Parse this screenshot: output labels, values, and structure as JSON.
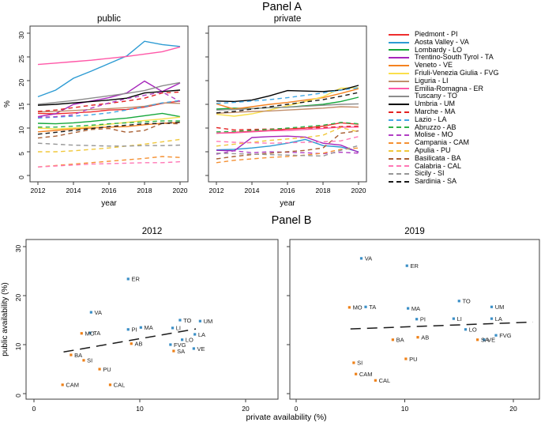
{
  "figure": {
    "panel_a_title": "Panel A",
    "panel_b_title": "Panel B"
  },
  "colors": {
    "north_points": "#3a8fc7",
    "south_points": "#ef8118",
    "axis": "#3c3c3c",
    "trend": "#1a1a1a"
  },
  "legend": {
    "entries": [
      {
        "label": "Piedmont - PI",
        "abbr": "PI",
        "color": "#ee2e2e",
        "dashed": false
      },
      {
        "label": "Aosta Valley - VA",
        "abbr": "VA",
        "color": "#2d9bd3",
        "dashed": false
      },
      {
        "label": "Lombardy - LO",
        "abbr": "LO",
        "color": "#16a73c",
        "dashed": false
      },
      {
        "label": "Trentino-South Tyrol - TA",
        "abbr": "TA",
        "color": "#a626bb",
        "dashed": false
      },
      {
        "label": "Veneto - VE",
        "abbr": "VE",
        "color": "#f58220",
        "dashed": false
      },
      {
        "label": "Friuli-Venezia Giulia - FVG",
        "abbr": "FVG",
        "color": "#fadf4b",
        "dashed": false
      },
      {
        "label": "Liguria - LI",
        "abbr": "LI",
        "color": "#c18e6b",
        "dashed": false
      },
      {
        "label": "Emilia-Romagna - ER",
        "abbr": "ER",
        "color": "#ff58a8",
        "dashed": false
      },
      {
        "label": "Tuscany - TO",
        "abbr": "TO",
        "color": "#8c8c8c",
        "dashed": false
      },
      {
        "label": "Umbria - UM",
        "abbr": "UM",
        "color": "#000000",
        "dashed": false
      },
      {
        "label": "Marche - MA",
        "abbr": "MA",
        "color": "#e32222",
        "dashed": true
      },
      {
        "label": "Lazio - LA",
        "abbr": "LA",
        "color": "#41a7e4",
        "dashed": true
      },
      {
        "label": "Abruzzo - AB",
        "abbr": "AB",
        "color": "#2eb34a",
        "dashed": true
      },
      {
        "label": "Molise - MO",
        "abbr": "MO",
        "color": "#b13fc4",
        "dashed": true
      },
      {
        "label": "Campania - CAM",
        "abbr": "CAM",
        "color": "#f59133",
        "dashed": true
      },
      {
        "label": "Apulia - PU",
        "abbr": "PU",
        "color": "#f0c83c",
        "dashed": true
      },
      {
        "label": "Basilicata - BA",
        "abbr": "BA",
        "color": "#a85f33",
        "dashed": true
      },
      {
        "label": "Calabria - CAL",
        "abbr": "CAL",
        "color": "#ff77b5",
        "dashed": true
      },
      {
        "label": "Sicily - SI",
        "abbr": "SI",
        "color": "#969696",
        "dashed": true
      },
      {
        "label": "Sardinia - SA",
        "abbr": "SA",
        "color": "#1a1a1a",
        "dashed": true
      }
    ]
  },
  "chart_data": [
    {
      "id": "public",
      "type": "line",
      "title": "public",
      "xlabel": "year",
      "ylabel": "%",
      "x": [
        2012,
        2013,
        2014,
        2015,
        2016,
        2017,
        2018,
        2019,
        2020
      ],
      "x_ticks": [
        2012,
        2014,
        2016,
        2018,
        2020
      ],
      "y_ticks": [
        0,
        5,
        10,
        15,
        20,
        25,
        30
      ],
      "xlim": [
        2011.5,
        2020.5
      ],
      "ylim": [
        -1.3,
        31.5
      ],
      "grid": false,
      "series": [
        {
          "name": "Piedmont - PI",
          "values": [
            13.1,
            13.0,
            13.2,
            13.4,
            13.8,
            13.9,
            14.4,
            15.2,
            15.7
          ]
        },
        {
          "name": "Aosta Valley - VA",
          "values": [
            16.6,
            18.0,
            20.5,
            22.0,
            23.6,
            25.2,
            28.3,
            27.6,
            27.2
          ]
        },
        {
          "name": "Lombardy - LO",
          "values": [
            11.0,
            10.9,
            11.1,
            11.4,
            11.8,
            12.1,
            12.6,
            13.1,
            12.4
          ]
        },
        {
          "name": "Trentino-South Tyrol - TA",
          "values": [
            12.4,
            13.0,
            15.0,
            15.7,
            16.4,
            17.4,
            19.9,
            17.7,
            19.5
          ]
        },
        {
          "name": "Veneto - VE",
          "values": [
            9.2,
            9.5,
            9.8,
            10.0,
            10.2,
            10.3,
            10.7,
            11.0,
            11.2
          ]
        },
        {
          "name": "Friuli-Venezia Giulia - FVG",
          "values": [
            10.0,
            9.8,
            10.0,
            10.3,
            10.8,
            11.2,
            11.6,
            11.9,
            12.3
          ]
        },
        {
          "name": "Liguria - LI",
          "values": [
            13.4,
            13.5,
            13.7,
            13.9,
            14.1,
            14.3,
            14.6,
            15.3,
            15.2
          ]
        },
        {
          "name": "Emilia-Romagna - ER",
          "values": [
            23.4,
            23.7,
            24.0,
            24.3,
            24.7,
            25.1,
            25.6,
            26.1,
            27.1
          ]
        },
        {
          "name": "Tuscany - TO",
          "values": [
            15.0,
            15.4,
            15.8,
            16.3,
            16.8,
            17.3,
            17.9,
            18.9,
            19.6
          ]
        },
        {
          "name": "Umbria - UM",
          "values": [
            14.8,
            15.0,
            15.3,
            15.6,
            15.9,
            16.3,
            17.4,
            17.7,
            18.0
          ]
        },
        {
          "name": "Marche - MA",
          "values": [
            13.5,
            13.8,
            14.3,
            14.8,
            15.2,
            15.7,
            16.3,
            17.4,
            17.6
          ]
        },
        {
          "name": "Lazio - LA",
          "values": [
            12.1,
            12.3,
            12.5,
            12.8,
            13.2,
            13.8,
            14.5,
            15.3,
            15.8
          ]
        },
        {
          "name": "Abruzzo - AB",
          "values": [
            10.2,
            10.2,
            10.4,
            10.6,
            10.9,
            11.1,
            11.3,
            11.5,
            11.5
          ]
        },
        {
          "name": "Molise - MO",
          "values": [
            12.3,
            12.4,
            12.8,
            14.2,
            15.3,
            16.2,
            16.9,
            17.6,
            15.6
          ]
        },
        {
          "name": "Campania - CAM",
          "values": [
            1.8,
            2.1,
            2.4,
            2.7,
            3.0,
            3.3,
            3.6,
            4.0,
            3.8
          ]
        },
        {
          "name": "Apulia - PU",
          "values": [
            5.0,
            5.0,
            5.2,
            5.5,
            5.8,
            6.2,
            6.6,
            7.1,
            7.6
          ]
        },
        {
          "name": "Basilicata - BA",
          "values": [
            7.9,
            8.3,
            9.0,
            9.7,
            9.9,
            9.1,
            9.5,
            11.0,
            10.9
          ]
        },
        {
          "name": "Calabria - CAL",
          "values": [
            1.8,
            2.0,
            2.2,
            2.4,
            2.5,
            2.6,
            2.7,
            2.7,
            2.9
          ]
        },
        {
          "name": "Sicily - SI",
          "values": [
            6.8,
            6.6,
            6.4,
            6.3,
            6.2,
            6.2,
            6.3,
            6.3,
            6.4
          ]
        },
        {
          "name": "Sardinia - SA",
          "values": [
            8.7,
            9.1,
            9.5,
            9.9,
            10.3,
            10.6,
            10.9,
            11.0,
            11.2
          ]
        }
      ]
    },
    {
      "id": "private",
      "type": "line",
      "title": "private",
      "xlabel": "year",
      "ylabel": "",
      "x": [
        2012,
        2013,
        2014,
        2015,
        2016,
        2017,
        2018,
        2019,
        2020
      ],
      "x_ticks": [
        2012,
        2014,
        2016,
        2018,
        2020
      ],
      "y_ticks": [
        0,
        5,
        10,
        15,
        20,
        25,
        30
      ],
      "xlim": [
        2011.5,
        2020.5
      ],
      "ylim": [
        -1.3,
        31.5
      ],
      "grid": false,
      "series": [
        {
          "name": "Piedmont - PI",
          "values": [
            8.9,
            9.1,
            9.3,
            9.5,
            9.8,
            10.0,
            10.4,
            11.1,
            10.8
          ]
        },
        {
          "name": "Aosta Valley - VA",
          "values": [
            5.4,
            5.5,
            5.8,
            6.2,
            6.8,
            7.6,
            6.3,
            6.0,
            5.0
          ]
        },
        {
          "name": "Lombardy - LO",
          "values": [
            14.0,
            14.2,
            14.1,
            14.3,
            14.4,
            14.7,
            15.0,
            15.6,
            16.5
          ]
        },
        {
          "name": "Trentino-South Tyrol - TA",
          "values": [
            5.3,
            5.2,
            8.0,
            8.2,
            8.3,
            8.1,
            6.8,
            6.4,
            4.9
          ]
        },
        {
          "name": "Veneto - VE",
          "values": [
            15.1,
            14.0,
            14.5,
            15.0,
            15.4,
            15.9,
            16.4,
            17.3,
            18.3
          ]
        },
        {
          "name": "Friuli-Venezia Giulia - FVG",
          "values": [
            12.9,
            12.5,
            13.0,
            13.8,
            14.7,
            15.6,
            16.6,
            18.4,
            18.5
          ]
        },
        {
          "name": "Liguria - LI",
          "values": [
            13.1,
            13.3,
            13.5,
            13.6,
            13.8,
            14.0,
            14.2,
            14.5,
            14.4
          ]
        },
        {
          "name": "Emilia-Romagna - ER",
          "values": [
            8.9,
            9.0,
            9.2,
            9.4,
            9.5,
            9.7,
            9.9,
            10.2,
            10.2
          ]
        },
        {
          "name": "Tuscany - TO",
          "values": [
            13.8,
            13.9,
            14.1,
            14.3,
            14.4,
            14.6,
            14.8,
            15.0,
            15.1
          ]
        },
        {
          "name": "Umbria - UM",
          "values": [
            15.7,
            15.6,
            15.9,
            16.8,
            17.9,
            17.8,
            17.7,
            18.0,
            19.0
          ]
        },
        {
          "name": "Marche - MA",
          "values": [
            10.1,
            9.6,
            9.7,
            9.8,
            9.9,
            10.0,
            10.1,
            10.3,
            10.4
          ]
        },
        {
          "name": "Lazio - LA",
          "values": [
            15.2,
            15.4,
            15.7,
            16.0,
            16.4,
            16.9,
            17.4,
            18.0,
            18.5
          ]
        },
        {
          "name": "Abruzzo - AB",
          "values": [
            9.2,
            9.3,
            9.5,
            9.7,
            10.0,
            10.3,
            10.6,
            11.2,
            10.9
          ]
        },
        {
          "name": "Molise - MO",
          "values": [
            4.5,
            5.2,
            4.8,
            5.0,
            4.9,
            4.8,
            4.6,
            4.9,
            4.7
          ]
        },
        {
          "name": "Campania - CAM",
          "values": [
            2.7,
            3.2,
            3.5,
            3.8,
            4.0,
            4.3,
            4.7,
            5.5,
            5.8
          ]
        },
        {
          "name": "Apulia - PU",
          "values": [
            6.2,
            6.6,
            7.0,
            7.4,
            7.7,
            8.0,
            8.5,
            10.1,
            9.2
          ]
        },
        {
          "name": "Basilicata - BA",
          "values": [
            3.5,
            4.0,
            4.4,
            4.7,
            5.0,
            5.3,
            5.8,
            8.9,
            9.4
          ]
        },
        {
          "name": "Calabria - CAL",
          "values": [
            7.2,
            7.0,
            6.9,
            6.8,
            6.9,
            7.0,
            7.1,
            7.3,
            8.2
          ]
        },
        {
          "name": "Sicily - SI",
          "values": [
            4.7,
            4.6,
            4.5,
            4.4,
            4.3,
            4.2,
            4.1,
            5.3,
            6.3
          ]
        },
        {
          "name": "Sardinia - SA",
          "values": [
            13.2,
            13.5,
            14.0,
            14.5,
            15.0,
            15.5,
            16.0,
            16.7,
            17.5
          ]
        }
      ]
    },
    {
      "id": "scatter2012",
      "type": "scatter",
      "title": "2012",
      "xlabel": "private availability (%)",
      "ylabel": "public availability (%)",
      "x_ticks": [
        0,
        10,
        20
      ],
      "y_ticks": [
        0,
        10,
        20,
        30
      ],
      "xlim": [
        -0.8,
        23.1
      ],
      "ylim": [
        -1.1,
        31.5
      ],
      "grid": false,
      "trend": {
        "x1": 2.8,
        "y1": 8.5,
        "x2": 15.3,
        "y2": 13.2
      },
      "points": [
        {
          "label": "PI",
          "x": 8.9,
          "y": 13.1,
          "group": "north"
        },
        {
          "label": "VA",
          "x": 5.4,
          "y": 16.6,
          "group": "north"
        },
        {
          "label": "LO",
          "x": 14.0,
          "y": 11.0,
          "group": "north"
        },
        {
          "label": "TA",
          "x": 5.3,
          "y": 12.4,
          "group": "north"
        },
        {
          "label": "VE",
          "x": 15.1,
          "y": 9.2,
          "group": "north"
        },
        {
          "label": "FVG",
          "x": 12.9,
          "y": 10.0,
          "group": "north"
        },
        {
          "label": "LI",
          "x": 13.1,
          "y": 13.4,
          "group": "north"
        },
        {
          "label": "ER",
          "x": 8.9,
          "y": 23.4,
          "group": "north"
        },
        {
          "label": "TO",
          "x": 13.8,
          "y": 15.0,
          "group": "north"
        },
        {
          "label": "UM",
          "x": 15.7,
          "y": 14.8,
          "group": "north"
        },
        {
          "label": "MA",
          "x": 10.1,
          "y": 13.5,
          "group": "north"
        },
        {
          "label": "LA",
          "x": 15.2,
          "y": 12.1,
          "group": "north"
        },
        {
          "label": "AB",
          "x": 9.2,
          "y": 10.2,
          "group": "south"
        },
        {
          "label": "MO",
          "x": 4.5,
          "y": 12.3,
          "group": "south"
        },
        {
          "label": "CAM",
          "x": 2.7,
          "y": 1.8,
          "group": "south"
        },
        {
          "label": "PU",
          "x": 6.2,
          "y": 5.0,
          "group": "south"
        },
        {
          "label": "BA",
          "x": 3.5,
          "y": 7.9,
          "group": "south"
        },
        {
          "label": "CAL",
          "x": 7.2,
          "y": 1.8,
          "group": "south"
        },
        {
          "label": "SI",
          "x": 4.7,
          "y": 6.8,
          "group": "south"
        },
        {
          "label": "SA",
          "x": 13.2,
          "y": 8.7,
          "group": "south"
        }
      ]
    },
    {
      "id": "scatter2019",
      "type": "scatter",
      "title": "2019",
      "xlabel": "private availability (%)",
      "ylabel": "",
      "x_ticks": [
        0,
        10,
        20
      ],
      "y_ticks": [
        0,
        10,
        20,
        30
      ],
      "xlim": [
        -0.6,
        22.4
      ],
      "ylim": [
        -1.1,
        31.5
      ],
      "grid": false,
      "trend": {
        "x1": 5.0,
        "y1": 13.2,
        "x2": 21.8,
        "y2": 14.6
      },
      "points": [
        {
          "label": "PI",
          "x": 11.1,
          "y": 15.2,
          "group": "north"
        },
        {
          "label": "VA",
          "x": 6.0,
          "y": 27.6,
          "group": "north"
        },
        {
          "label": "LO",
          "x": 15.6,
          "y": 13.1,
          "group": "north"
        },
        {
          "label": "TA",
          "x": 6.4,
          "y": 17.7,
          "group": "north"
        },
        {
          "label": "VE",
          "x": 17.3,
          "y": 11.0,
          "group": "north"
        },
        {
          "label": "FVG",
          "x": 18.4,
          "y": 11.9,
          "group": "north"
        },
        {
          "label": "LI",
          "x": 14.5,
          "y": 15.3,
          "group": "north"
        },
        {
          "label": "ER",
          "x": 10.2,
          "y": 26.1,
          "group": "north"
        },
        {
          "label": "TO",
          "x": 15.0,
          "y": 18.9,
          "group": "north"
        },
        {
          "label": "UM",
          "x": 18.0,
          "y": 17.7,
          "group": "north"
        },
        {
          "label": "MA",
          "x": 10.3,
          "y": 17.4,
          "group": "north"
        },
        {
          "label": "LA",
          "x": 18.0,
          "y": 15.3,
          "group": "north"
        },
        {
          "label": "AB",
          "x": 11.2,
          "y": 11.5,
          "group": "south"
        },
        {
          "label": "MO",
          "x": 4.9,
          "y": 17.6,
          "group": "south"
        },
        {
          "label": "CAM",
          "x": 5.5,
          "y": 4.0,
          "group": "south"
        },
        {
          "label": "PU",
          "x": 10.1,
          "y": 7.1,
          "group": "south"
        },
        {
          "label": "BA",
          "x": 8.9,
          "y": 11.0,
          "group": "south"
        },
        {
          "label": "CAL",
          "x": 7.3,
          "y": 2.7,
          "group": "south"
        },
        {
          "label": "SI",
          "x": 5.3,
          "y": 6.3,
          "group": "south"
        },
        {
          "label": "SA",
          "x": 16.7,
          "y": 11.0,
          "group": "south"
        }
      ]
    }
  ]
}
